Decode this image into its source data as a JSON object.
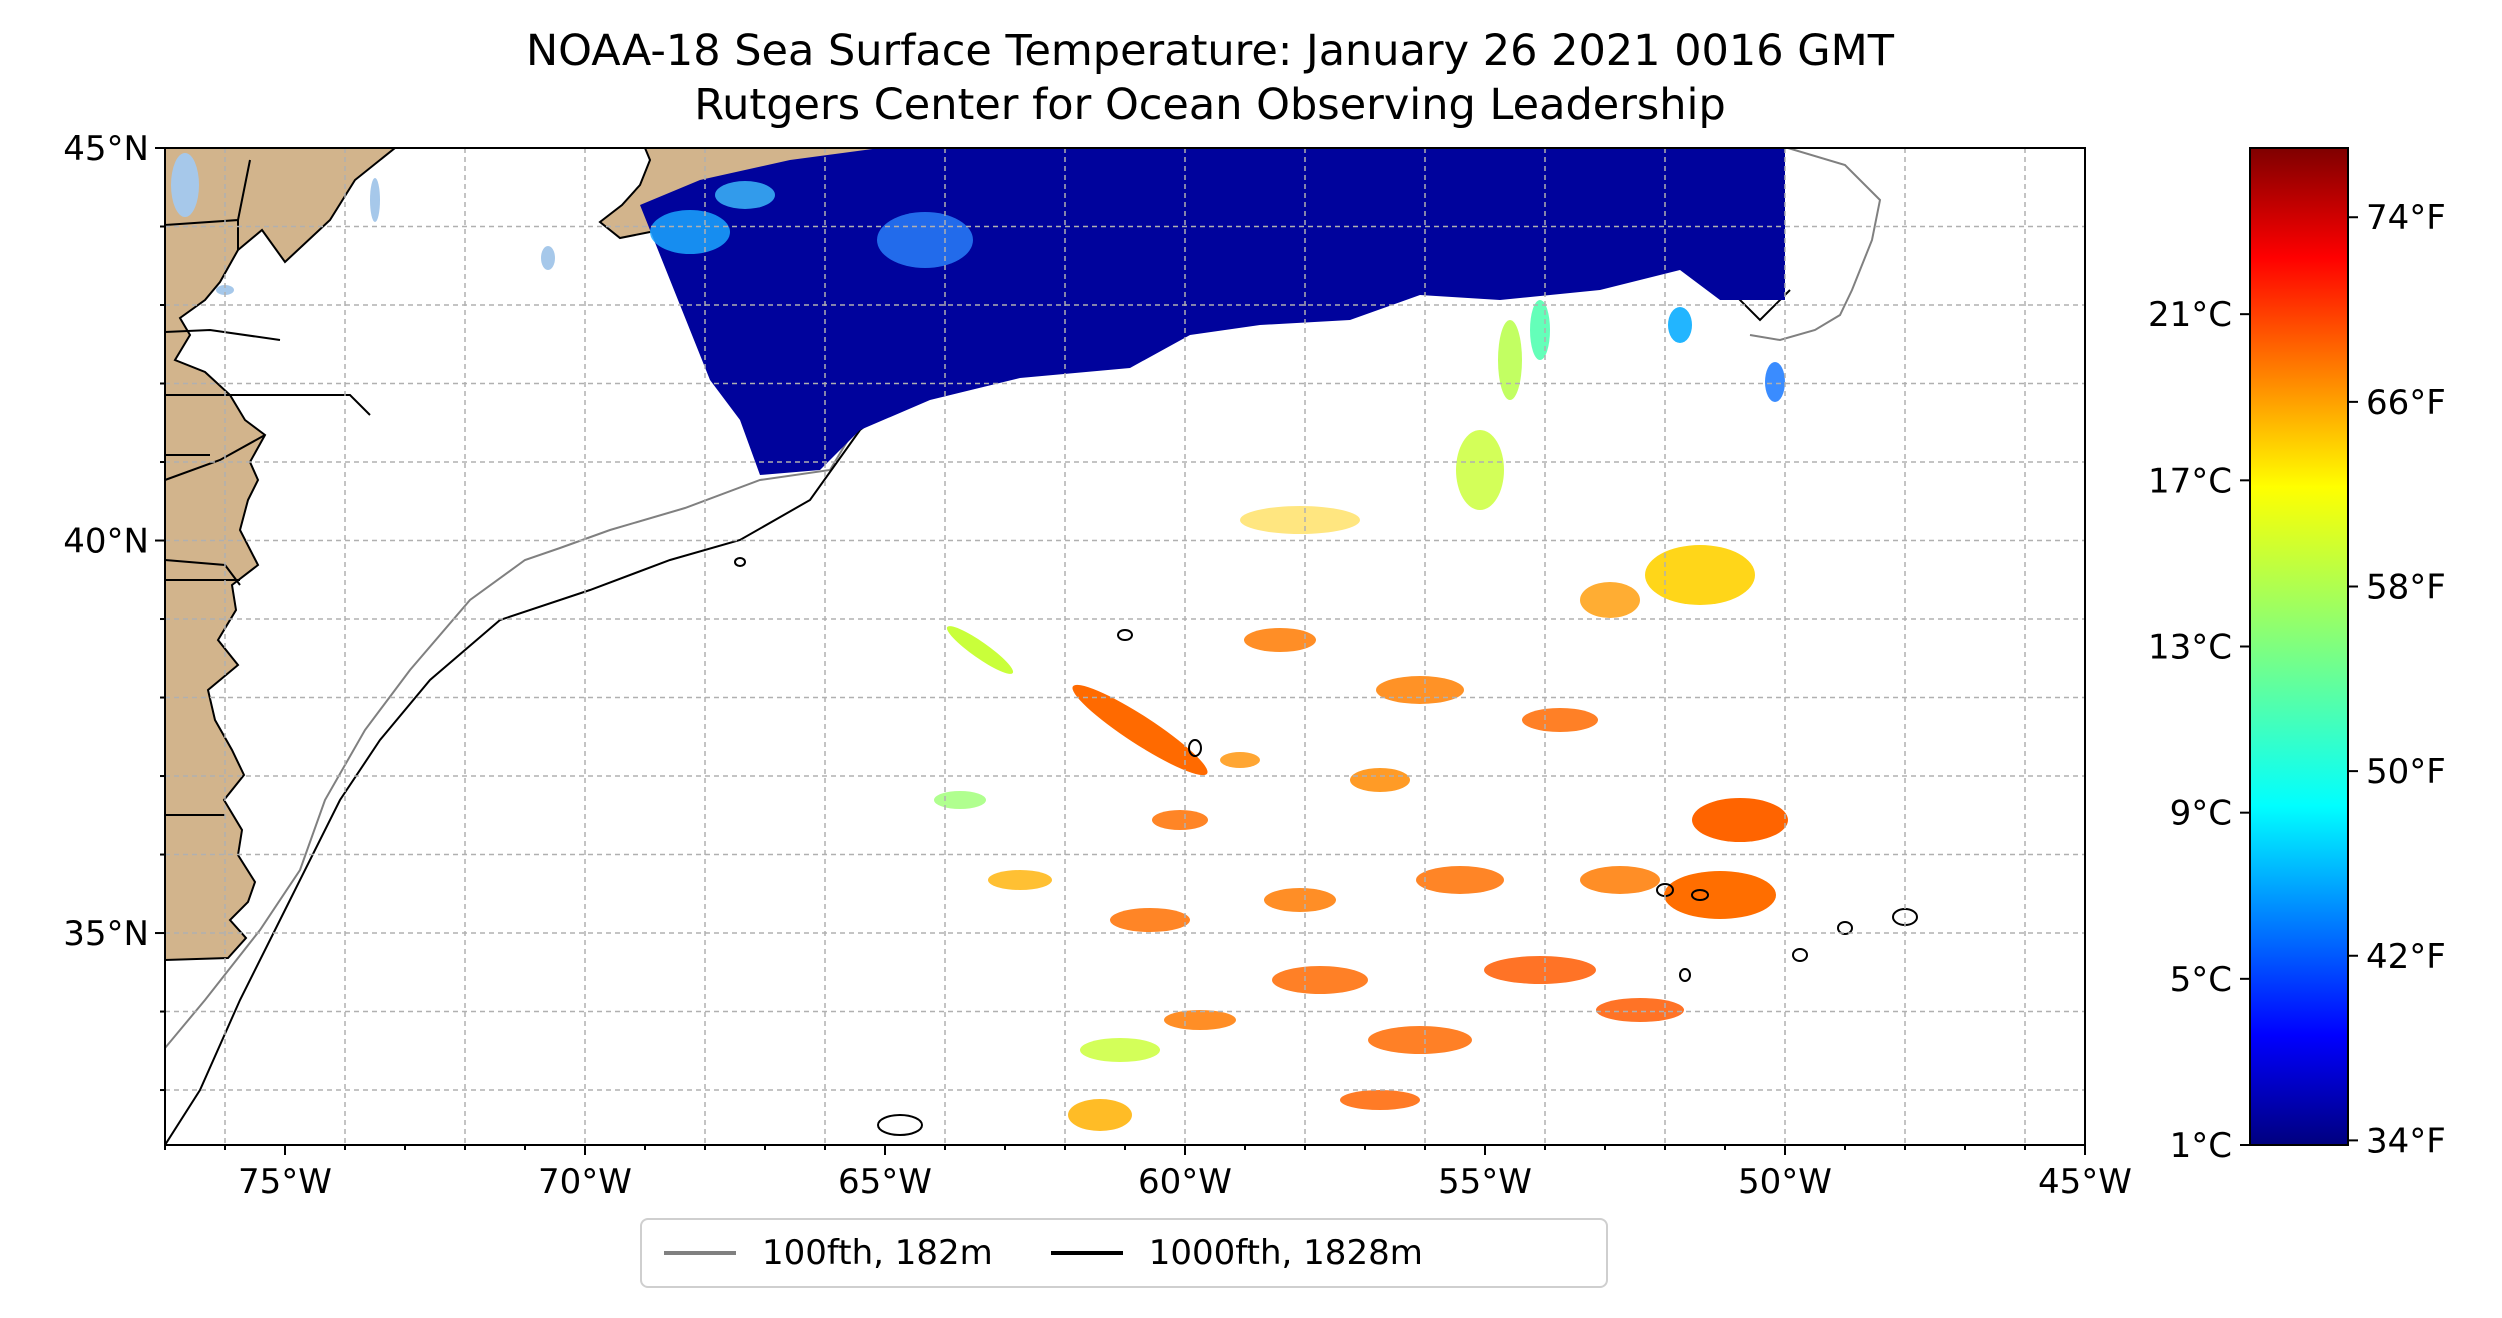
{
  "title": {
    "line1": "NOAA-18 Sea Surface Temperature: January 26 2021 0016 GMT",
    "line2": "Rutgers Center for Ocean Observing Leadership"
  },
  "map": {
    "lon_range": [
      -77,
      -45
    ],
    "lat_range": [
      32.3,
      45
    ],
    "lon_ticks": [
      "75°W",
      "70°W",
      "65°W",
      "60°W",
      "55°W",
      "50°W",
      "45°W"
    ],
    "lat_ticks": [
      "35°N",
      "40°N",
      "45°N"
    ],
    "gridlines": "dashed",
    "land_color": "#d2b48c",
    "lake_color": "#a6c8ea"
  },
  "colorbar": {
    "colormap": "jet",
    "celsius_ticks": [
      "1°C",
      "5°C",
      "9°C",
      "13°C",
      "17°C",
      "21°C"
    ],
    "fahrenheit_ticks": [
      "34°F",
      "42°F",
      "50°F",
      "58°F",
      "66°F",
      "74°F"
    ]
  },
  "legend": {
    "entries": [
      {
        "label": "100fth, 182m",
        "color": "#808080"
      },
      {
        "label": "1000fth, 1828m",
        "color": "#000000"
      }
    ]
  }
}
